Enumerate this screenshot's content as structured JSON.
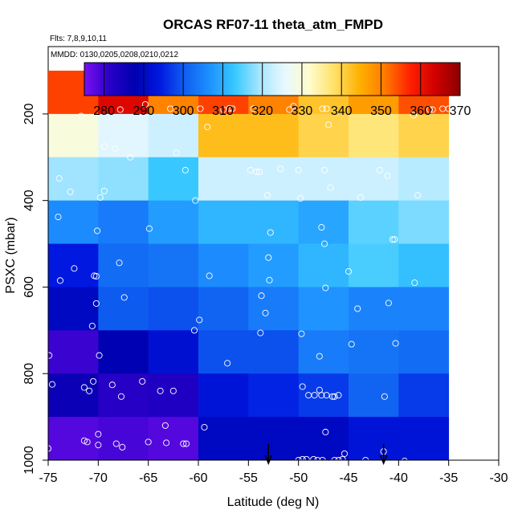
{
  "chart_data": {
    "type": "heatmap",
    "title": "ORCAS RF07-11 theta_atm_FMPD",
    "subtitle_flights": "Flts: 7,8,9,10,11",
    "subtitle_dates": "MMDD: 0130,0205,0208,0210,0212",
    "xlabel": "Latitude (deg N)",
    "ylabel": "PSXC (mbar)",
    "xlim": [
      -75,
      -30
    ],
    "ylim": [
      1000,
      100
    ],
    "x_ticks": [
      -75,
      -70,
      -65,
      -60,
      -55,
      -50,
      -45,
      -40,
      -35,
      -30
    ],
    "y_ticks": [
      200,
      400,
      600,
      800,
      1000
    ],
    "colorbar": {
      "range": [
        275,
        370
      ],
      "ticks": [
        280,
        290,
        300,
        310,
        320,
        330,
        340,
        350,
        360,
        370
      ],
      "colors": [
        "#7a10f0",
        "#2a00c8",
        "#0000b0",
        "#0018e0",
        "#0f5ff0",
        "#1e90ff",
        "#38c8ff",
        "#a6e6ff",
        "#e8f8ff",
        "#fffccc",
        "#ffe066",
        "#ffb000",
        "#ff7a00",
        "#ff2000",
        "#d00000",
        "#8b0000"
      ]
    },
    "x_bin_edges": [
      -75,
      -70,
      -65,
      -60,
      -55,
      -50,
      -45,
      -40,
      -35
    ],
    "y_bin_edges": [
      100,
      200,
      300,
      400,
      500,
      600,
      700,
      800,
      900,
      1000
    ],
    "z_values": [
      [
        355,
        362,
        350,
        355,
        350,
        342,
        347,
        354
      ],
      [
        330,
        325,
        323,
        343,
        343,
        340,
        337,
        340
      ],
      [
        319,
        318,
        313,
        323,
        323,
        323,
        323,
        321
      ],
      [
        306,
        304,
        308,
        311,
        311,
        309,
        315,
        317
      ],
      [
        294,
        302,
        303,
        306,
        308,
        311,
        314,
        312
      ],
      [
        290,
        300,
        299,
        301,
        304,
        307,
        305,
        305
      ],
      [
        280,
        288,
        292,
        299,
        299,
        304,
        303,
        302
      ],
      [
        286,
        282,
        283,
        293,
        295,
        297,
        301,
        297
      ],
      [
        278,
        279,
        278,
        290,
        290,
        290,
        293,
        293
      ]
    ],
    "observations": [
      {
        "lat": -71.7,
        "p": 205
      },
      {
        "lat": -67.8,
        "p": 190
      },
      {
        "lat": -65.3,
        "p": 178
      },
      {
        "lat": -62.8,
        "p": 188
      },
      {
        "lat": -59.8,
        "p": 188
      },
      {
        "lat": -57.5,
        "p": 190
      },
      {
        "lat": -56.9,
        "p": 187
      },
      {
        "lat": -56.6,
        "p": 188
      },
      {
        "lat": -54.5,
        "p": 188
      },
      {
        "lat": -50.9,
        "p": 190
      },
      {
        "lat": -50.5,
        "p": 182
      },
      {
        "lat": -47.6,
        "p": 188
      },
      {
        "lat": -47.2,
        "p": 188
      },
      {
        "lat": -38.5,
        "p": 203
      },
      {
        "lat": -36.9,
        "p": 190
      },
      {
        "lat": -36.6,
        "p": 190
      },
      {
        "lat": -35.6,
        "p": 188
      },
      {
        "lat": -35.0,
        "p": 188
      },
      {
        "lat": -69.4,
        "p": 275
      },
      {
        "lat": -68.3,
        "p": 280
      },
      {
        "lat": -59.1,
        "p": 230
      },
      {
        "lat": -47.0,
        "p": 225
      },
      {
        "lat": -73.9,
        "p": 349
      },
      {
        "lat": -72.8,
        "p": 380
      },
      {
        "lat": -69.4,
        "p": 378
      },
      {
        "lat": -69.8,
        "p": 393
      },
      {
        "lat": -66.8,
        "p": 300
      },
      {
        "lat": -62.2,
        "p": 290
      },
      {
        "lat": -61.3,
        "p": 330
      },
      {
        "lat": -60.3,
        "p": 400
      },
      {
        "lat": -54.8,
        "p": 330
      },
      {
        "lat": -54.2,
        "p": 334
      },
      {
        "lat": -53.9,
        "p": 334
      },
      {
        "lat": -53.1,
        "p": 388
      },
      {
        "lat": -51.8,
        "p": 327
      },
      {
        "lat": -50.0,
        "p": 330
      },
      {
        "lat": -49.8,
        "p": 395
      },
      {
        "lat": -47.4,
        "p": 330
      },
      {
        "lat": -46.8,
        "p": 370
      },
      {
        "lat": -43.8,
        "p": 393
      },
      {
        "lat": -41.9,
        "p": 330
      },
      {
        "lat": -41.1,
        "p": 343
      },
      {
        "lat": -38.1,
        "p": 388
      },
      {
        "lat": -74.0,
        "p": 438
      },
      {
        "lat": -70.1,
        "p": 470
      },
      {
        "lat": -64.9,
        "p": 465
      },
      {
        "lat": -52.8,
        "p": 474
      },
      {
        "lat": -47.7,
        "p": 462
      },
      {
        "lat": -47.4,
        "p": 500
      },
      {
        "lat": -40.6,
        "p": 490
      },
      {
        "lat": -40.4,
        "p": 490
      },
      {
        "lat": -73.8,
        "p": 585
      },
      {
        "lat": -72.4,
        "p": 557
      },
      {
        "lat": -70.4,
        "p": 574
      },
      {
        "lat": -70.2,
        "p": 575
      },
      {
        "lat": -67.9,
        "p": 544
      },
      {
        "lat": -67.4,
        "p": 624
      },
      {
        "lat": -58.9,
        "p": 574
      },
      {
        "lat": -53.0,
        "p": 532
      },
      {
        "lat": -52.9,
        "p": 584
      },
      {
        "lat": -47.3,
        "p": 602
      },
      {
        "lat": -45.0,
        "p": 564
      },
      {
        "lat": -38.4,
        "p": 590
      },
      {
        "lat": -70.2,
        "p": 638
      },
      {
        "lat": -70.6,
        "p": 690
      },
      {
        "lat": -60.4,
        "p": 700
      },
      {
        "lat": -59.9,
        "p": 676
      },
      {
        "lat": -53.7,
        "p": 620
      },
      {
        "lat": -53.3,
        "p": 660
      },
      {
        "lat": -53.8,
        "p": 706
      },
      {
        "lat": -49.7,
        "p": 708
      },
      {
        "lat": -44.1,
        "p": 650
      },
      {
        "lat": -41.0,
        "p": 637
      },
      {
        "lat": -40.3,
        "p": 730
      },
      {
        "lat": -74.9,
        "p": 758
      },
      {
        "lat": -69.9,
        "p": 758
      },
      {
        "lat": -57.1,
        "p": 776
      },
      {
        "lat": -47.9,
        "p": 760
      },
      {
        "lat": -44.7,
        "p": 732
      },
      {
        "lat": -74.6,
        "p": 825
      },
      {
        "lat": -71.4,
        "p": 832
      },
      {
        "lat": -70.9,
        "p": 840
      },
      {
        "lat": -70.5,
        "p": 818
      },
      {
        "lat": -68.6,
        "p": 826
      },
      {
        "lat": -67.7,
        "p": 853
      },
      {
        "lat": -65.6,
        "p": 818
      },
      {
        "lat": -63.8,
        "p": 840
      },
      {
        "lat": -62.5,
        "p": 840
      },
      {
        "lat": -49.6,
        "p": 830
      },
      {
        "lat": -49.0,
        "p": 850
      },
      {
        "lat": -48.4,
        "p": 850
      },
      {
        "lat": -47.9,
        "p": 838
      },
      {
        "lat": -47.7,
        "p": 850
      },
      {
        "lat": -47.2,
        "p": 850
      },
      {
        "lat": -46.6,
        "p": 853
      },
      {
        "lat": -46.4,
        "p": 853
      },
      {
        "lat": -46.0,
        "p": 850
      },
      {
        "lat": -41.4,
        "p": 853
      },
      {
        "lat": -75.0,
        "p": 973
      },
      {
        "lat": -71.4,
        "p": 955
      },
      {
        "lat": -71.1,
        "p": 958
      },
      {
        "lat": -70.0,
        "p": 940
      },
      {
        "lat": -70.0,
        "p": 965
      },
      {
        "lat": -68.2,
        "p": 962
      },
      {
        "lat": -67.6,
        "p": 970
      },
      {
        "lat": -65.0,
        "p": 958
      },
      {
        "lat": -63.3,
        "p": 920
      },
      {
        "lat": -63.2,
        "p": 960
      },
      {
        "lat": -61.5,
        "p": 962
      },
      {
        "lat": -61.2,
        "p": 962
      },
      {
        "lat": -59.4,
        "p": 924
      },
      {
        "lat": -50.0,
        "p": 1000
      },
      {
        "lat": -49.6,
        "p": 998
      },
      {
        "lat": -49.2,
        "p": 998
      },
      {
        "lat": -48.5,
        "p": 998
      },
      {
        "lat": -48.1,
        "p": 1000
      },
      {
        "lat": -47.6,
        "p": 1000
      },
      {
        "lat": -47.3,
        "p": 935
      },
      {
        "lat": -46.4,
        "p": 1000
      },
      {
        "lat": -46.0,
        "p": 1000
      },
      {
        "lat": -45.6,
        "p": 998
      },
      {
        "lat": -45.4,
        "p": 985
      },
      {
        "lat": -43.3,
        "p": 1000
      },
      {
        "lat": -41.5,
        "p": 980
      },
      {
        "lat": -39.4,
        "p": 1002
      }
    ],
    "arrows_lat": [
      -53.0,
      -41.5
    ]
  }
}
